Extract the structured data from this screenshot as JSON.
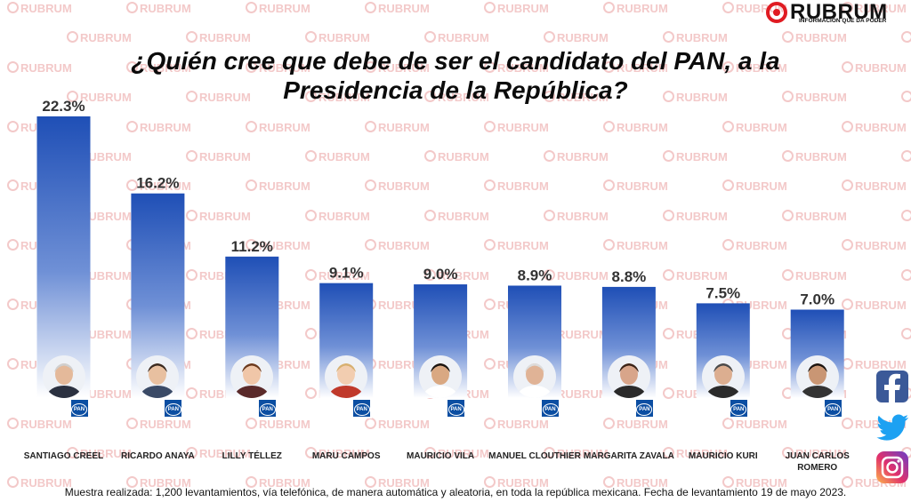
{
  "brand": {
    "name": "RUBRUM",
    "tagline": "INFORMACIÓN QUE DA PODER",
    "watermark": "RUBRUM",
    "accent": "#e01b22"
  },
  "title": {
    "line1": "¿Quién cree que debe de ser el candidato del PAN, a la",
    "line2": "Presidencia de la República?"
  },
  "chart_data": {
    "type": "bar",
    "categories": [
      "SANTIAGO CREEL",
      "RICARDO ANAYA",
      "LILLY TÉLLEZ",
      "MARU CAMPOS",
      "MAURICIO VILA",
      "MANUEL CLOUTHIER",
      "MARGARITA ZAVALA",
      "MAURICIO KURI",
      "JUAN CARLOS ROMERO"
    ],
    "values": [
      22.3,
      16.2,
      11.2,
      9.1,
      9.0,
      8.9,
      8.8,
      7.5,
      7.0
    ],
    "data_labels": [
      "22.3%",
      "16.2%",
      "11.2%",
      "9.1%",
      "9.0%",
      "8.9%",
      "8.8%",
      "7.5%",
      "7.0%"
    ],
    "ylim": [
      0,
      22.3
    ],
    "grid": false,
    "bar_color_top": "#1f4fb6",
    "bar_color_bottom": "#ffffff"
  },
  "party_badge": "PAN",
  "party_color": "#0b4ea2",
  "social": {
    "icons": [
      "facebook-icon",
      "twitter-icon",
      "instagram-icon"
    ],
    "facebook_color": "#3b5998",
    "twitter_color": "#1da1f2"
  },
  "footer": {
    "text": "Muestra realizada: 1,200 levantamientos, vía telefónica, de manera automática y aleatoria, en toda la república mexicana. Fecha de levantamiento 19 de mayo 2023."
  }
}
